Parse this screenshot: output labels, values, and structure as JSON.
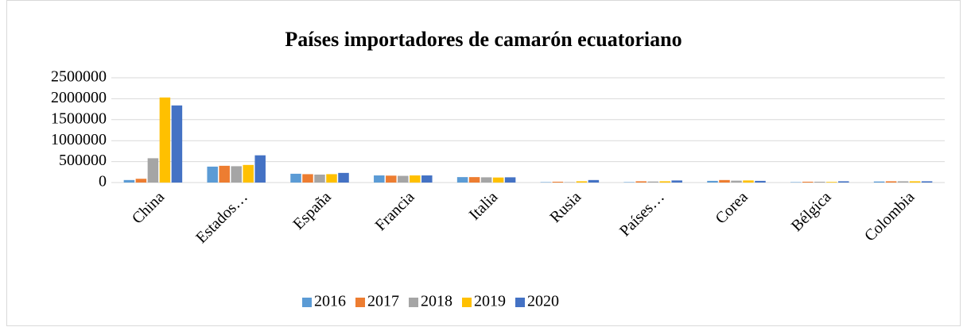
{
  "chart_data": {
    "type": "bar",
    "title": "Países importadores de camarón ecuatoriano",
    "categories": [
      "China",
      "Estados…",
      "España",
      "Francia",
      "Italia",
      "Rusia",
      "Países…",
      "Corea",
      "Bélgica",
      "Colombia"
    ],
    "series": [
      {
        "name": "2016",
        "color": "#5b9bd5",
        "values": [
          60000,
          380000,
          210000,
          170000,
          130000,
          10000,
          10000,
          40000,
          10000,
          25000
        ]
      },
      {
        "name": "2017",
        "color": "#ed7d31",
        "values": [
          90000,
          400000,
          200000,
          165000,
          130000,
          20000,
          30000,
          60000,
          20000,
          30000
        ]
      },
      {
        "name": "2018",
        "color": "#a5a5a5",
        "values": [
          580000,
          390000,
          190000,
          160000,
          125000,
          10000,
          25000,
          45000,
          20000,
          30000
        ]
      },
      {
        "name": "2019",
        "color": "#ffc000",
        "values": [
          2030000,
          420000,
          200000,
          170000,
          120000,
          30000,
          30000,
          50000,
          15000,
          30000
        ]
      },
      {
        "name": "2020",
        "color": "#4472c4",
        "values": [
          1840000,
          650000,
          230000,
          170000,
          125000,
          60000,
          50000,
          40000,
          30000,
          30000
        ]
      }
    ],
    "ylim": [
      0,
      2500000
    ],
    "yticks": [
      0,
      500000,
      1000000,
      1500000,
      2000000,
      2500000
    ],
    "grid": true,
    "legend": "bottom"
  }
}
